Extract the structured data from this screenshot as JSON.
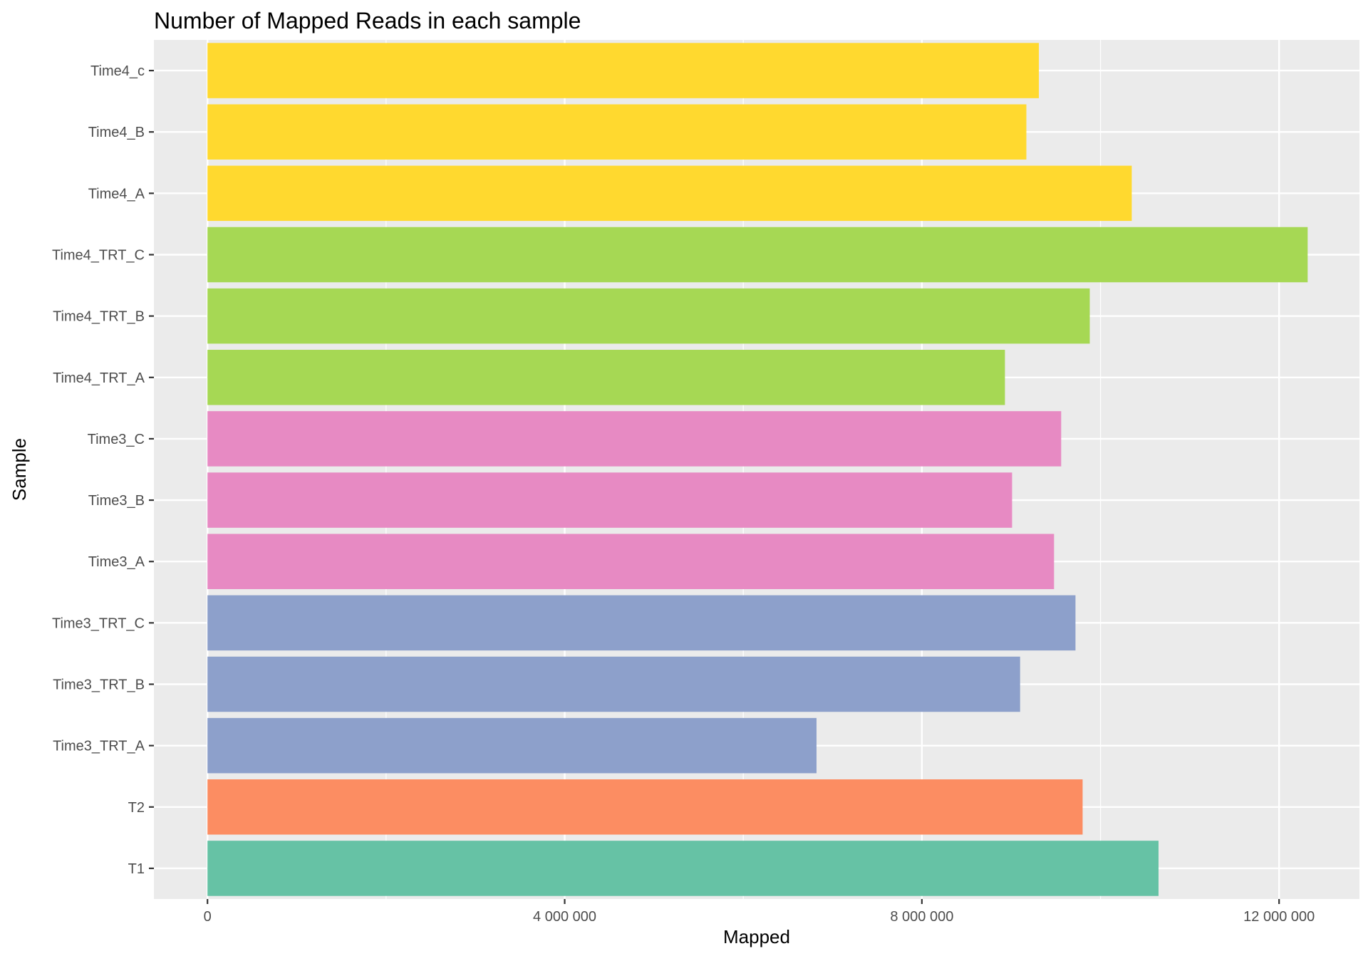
{
  "chart_data": {
    "type": "bar",
    "orientation": "horizontal",
    "title": "Number of Mapped Reads in each sample",
    "xlabel": "Mapped",
    "ylabel": "Sample",
    "categories": [
      "T1",
      "T2",
      "Time3_TRT_A",
      "Time3_TRT_B",
      "Time3_TRT_C",
      "Time3_A",
      "Time3_B",
      "Time3_C",
      "Time4_TRT_A",
      "Time4_TRT_B",
      "Time4_TRT_C",
      "Time4_A",
      "Time4_B",
      "Time4_c"
    ],
    "values": [
      10650000,
      9800000,
      6820000,
      9100000,
      9720000,
      9480000,
      9010000,
      9560000,
      8930000,
      9880000,
      12320000,
      10350000,
      9170000,
      9310000
    ],
    "groups": [
      "T1",
      "T2",
      "Time3_TRT",
      "Time3_TRT",
      "Time3_TRT",
      "Time3",
      "Time3",
      "Time3",
      "Time4_TRT",
      "Time4_TRT",
      "Time4_TRT",
      "Time4",
      "Time4",
      "Time4"
    ],
    "group_colors": {
      "T1": "#66c2a5",
      "T2": "#fc8d62",
      "Time3_TRT": "#8da0cb",
      "Time3": "#e78ac3",
      "Time4_TRT": "#a6d854",
      "Time4": "#ffd92f"
    },
    "xlim": [
      -600000,
      12900000
    ],
    "xticks": [
      0,
      4000000,
      8000000,
      12000000
    ],
    "xtick_labels": [
      "0",
      "4 000 000",
      "8 000 000",
      "12 000 000"
    ],
    "grid": true,
    "legend": "none",
    "panel_background": "#ebebeb",
    "grid_color": "#ffffff"
  }
}
